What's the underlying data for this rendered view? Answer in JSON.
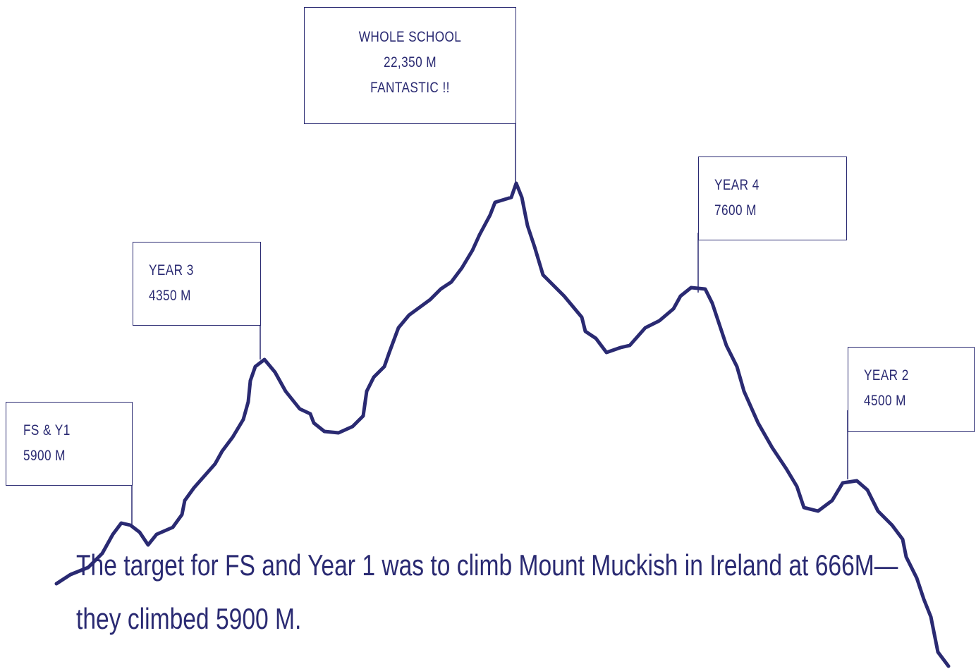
{
  "flags": [
    {
      "lines": [
        "WHOLE SCHOOL",
        "22,350 M",
        "FANTASTIC !!"
      ]
    },
    {
      "lines": [
        "YEAR 4",
        "7600 M"
      ]
    },
    {
      "lines": [
        "YEAR 3",
        "4350 M"
      ]
    },
    {
      "lines": [
        "FS & Y1",
        "5900 M"
      ]
    },
    {
      "lines": [
        "YEAR 2",
        "4500 M"
      ]
    }
  ],
  "caption": {
    "lines": [
      "The target for FS and Year 1 was to climb Mount Muckish in Ireland at 666M—",
      "they climbed 5900 M."
    ]
  }
}
